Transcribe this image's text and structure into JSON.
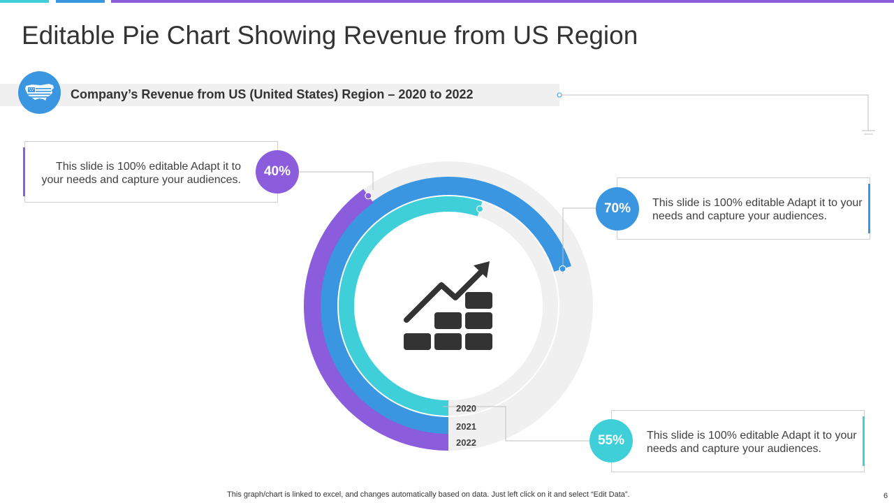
{
  "slide": {
    "title": "Editable Pie Chart Showing Revenue from US Region",
    "subtitle": "Company’s Revenue from US (United States) Region – 2020 to 2022",
    "footer_note": "This graph/chart is linked to excel,  and changes automatically based on data. Just left click on it and select “Edit Data”.",
    "page_number": "6"
  },
  "callouts": [
    {
      "text": "This slide is 100% editable Adapt it to your needs and capture your audiences."
    },
    {
      "text": "This slide is 100% editable Adapt it to your needs and capture your audiences."
    },
    {
      "text": "This slide is 100% editable Adapt it to your needs and capture your audiences."
    }
  ],
  "colors": {
    "y2020": "#3ECFD8",
    "y2021": "#3A96E0",
    "y2022": "#8B5CDB",
    "track": "#F0F0F0",
    "icon": "#333333"
  },
  "icons": [
    "us-map-icon",
    "growth-chart-icon"
  ],
  "chart_data": {
    "type": "doughnut",
    "title": "",
    "categories": [
      "2020",
      "2021",
      "2022"
    ],
    "values": [
      55,
      70,
      40
    ],
    "data_labels": [
      "55%",
      "70%",
      "40%"
    ],
    "unit": "%",
    "start_angle": "bottom",
    "direction": "clockwise"
  }
}
